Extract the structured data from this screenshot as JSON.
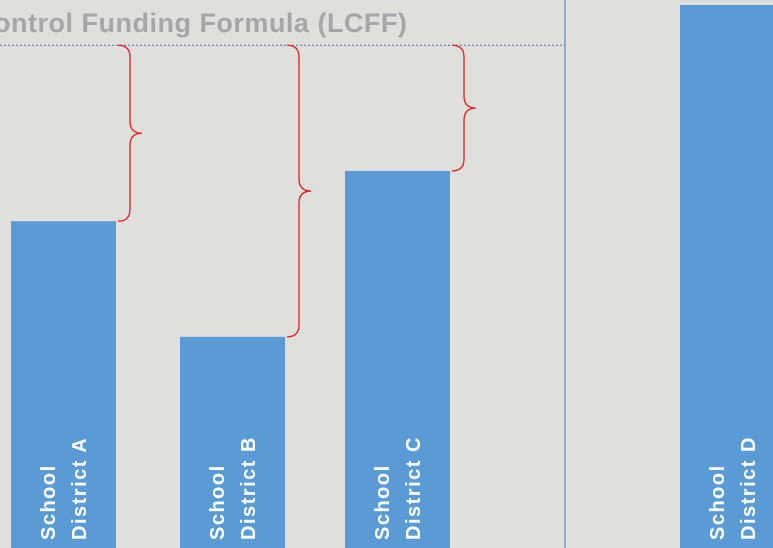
{
  "chart_data": {
    "type": "bar",
    "title": "ontrol Funding Formula (LCFF)",
    "categories": [
      [
        "School",
        "District A"
      ],
      [
        "School",
        "District B"
      ],
      [
        "School",
        "District C"
      ],
      [
        "School",
        "District D"
      ]
    ],
    "values": [
      65,
      42,
      75,
      108
    ],
    "color": "#5b9bd5",
    "ylim": [
      0,
      109
    ],
    "target": 100,
    "target_color": "#4a6fc0",
    "brace_color": "#e02020"
  }
}
